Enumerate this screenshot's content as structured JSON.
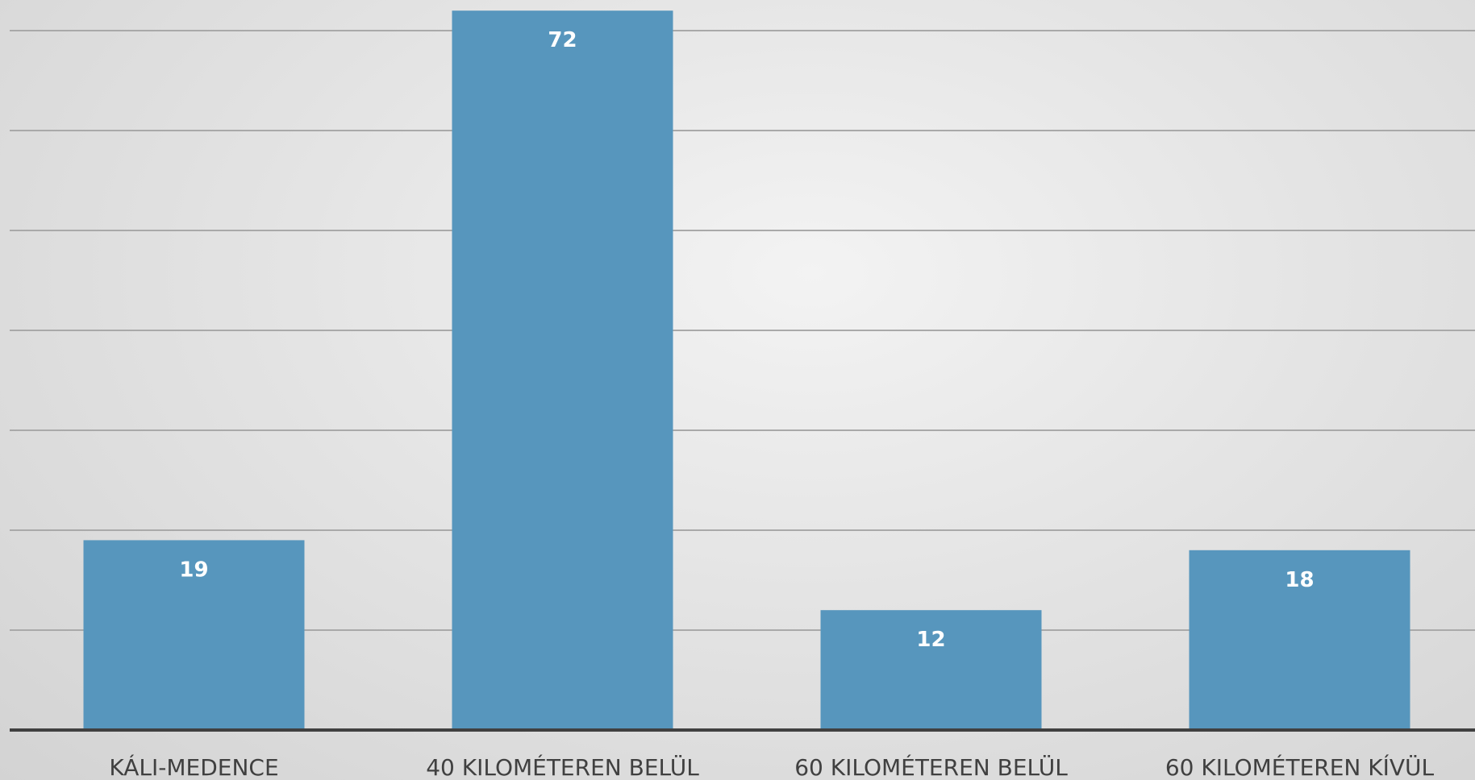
{
  "chart_data": {
    "type": "bar",
    "title": "",
    "xlabel": "",
    "ylabel": "",
    "categories": [
      "KÁLI-MEDENCE",
      "40 KILOMÉTEREN BELÜL",
      "60 KILOMÉTEREN BELÜL",
      "60 KILOMÉTEREN KÍVÜL"
    ],
    "values": [
      19,
      72,
      12,
      18
    ],
    "ylim": [
      0,
      70
    ],
    "gridline_step": 10,
    "grid": true,
    "legend": "none",
    "colors": {
      "bar": "#5796bd",
      "data_label": "#ffffff",
      "category_label": "#404040",
      "gridline": "#a9a9a9",
      "axis": "#404040"
    }
  }
}
